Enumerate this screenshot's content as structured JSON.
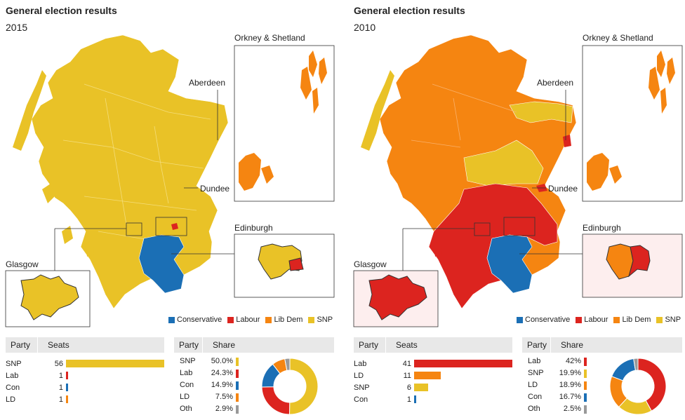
{
  "colors": {
    "conservative": "#1b6fb5",
    "labour": "#dc241f",
    "libdem": "#f58511",
    "snp": "#e9c227",
    "other": "#999999"
  },
  "left": {
    "title": "General election results",
    "year": "2015",
    "labels": {
      "orkney": "Orkney & Shetland",
      "aberdeen": "Aberdeen",
      "dundee": "Dundee",
      "edinburgh": "Edinburgh",
      "glasgow": "Glasgow"
    },
    "legend": [
      "Conservative",
      "Labour",
      "Lib Dem",
      "SNP"
    ],
    "seats_header": {
      "party": "Party",
      "seats": "Seats"
    },
    "seats": [
      {
        "party": "SNP",
        "seats": "56",
        "value": 56,
        "color": "snp"
      },
      {
        "party": "Lab",
        "seats": "1",
        "value": 1,
        "color": "labour"
      },
      {
        "party": "Con",
        "seats": "1",
        "value": 1,
        "color": "conservative"
      },
      {
        "party": "LD",
        "seats": "1",
        "value": 1,
        "color": "libdem"
      }
    ],
    "share_header": {
      "party": "Party",
      "share": "Share"
    },
    "share": [
      {
        "party": "SNP",
        "pct": "50.0%",
        "value": 50.0,
        "color": "snp"
      },
      {
        "party": "Lab",
        "pct": "24.3%",
        "value": 24.3,
        "color": "labour"
      },
      {
        "party": "Con",
        "pct": "14.9%",
        "value": 14.9,
        "color": "conservative"
      },
      {
        "party": "LD",
        "pct": "7.5%",
        "value": 7.5,
        "color": "libdem"
      },
      {
        "party": "Oth",
        "pct": "2.9%",
        "value": 2.9,
        "color": "other"
      }
    ]
  },
  "right": {
    "title": "General election results",
    "year": "2010",
    "labels": {
      "orkney": "Orkney & Shetland",
      "aberdeen": "Aberdeen",
      "dundee": "Dundee",
      "edinburgh": "Edinburgh",
      "glasgow": "Glasgow"
    },
    "legend": [
      "Conservative",
      "Labour",
      "Lib Dem",
      "SNP"
    ],
    "seats_header": {
      "party": "Party",
      "seats": "Seats"
    },
    "seats": [
      {
        "party": "Lab",
        "seats": "41",
        "value": 41,
        "color": "labour"
      },
      {
        "party": "LD",
        "seats": "11",
        "value": 11,
        "color": "libdem"
      },
      {
        "party": "SNP",
        "seats": "6",
        "value": 6,
        "color": "snp"
      },
      {
        "party": "Con",
        "seats": "1",
        "value": 1,
        "color": "conservative"
      }
    ],
    "share_header": {
      "party": "Party",
      "share": "Share"
    },
    "share": [
      {
        "party": "Lab",
        "pct": "42%",
        "value": 42,
        "color": "labour"
      },
      {
        "party": "SNP",
        "pct": "19.9%",
        "value": 19.9,
        "color": "snp"
      },
      {
        "party": "LD",
        "pct": "18.9%",
        "value": 18.9,
        "color": "libdem"
      },
      {
        "party": "Con",
        "pct": "16.7%",
        "value": 16.7,
        "color": "conservative"
      },
      {
        "party": "Oth",
        "pct": "2.5%",
        "value": 2.5,
        "color": "other"
      }
    ]
  }
}
